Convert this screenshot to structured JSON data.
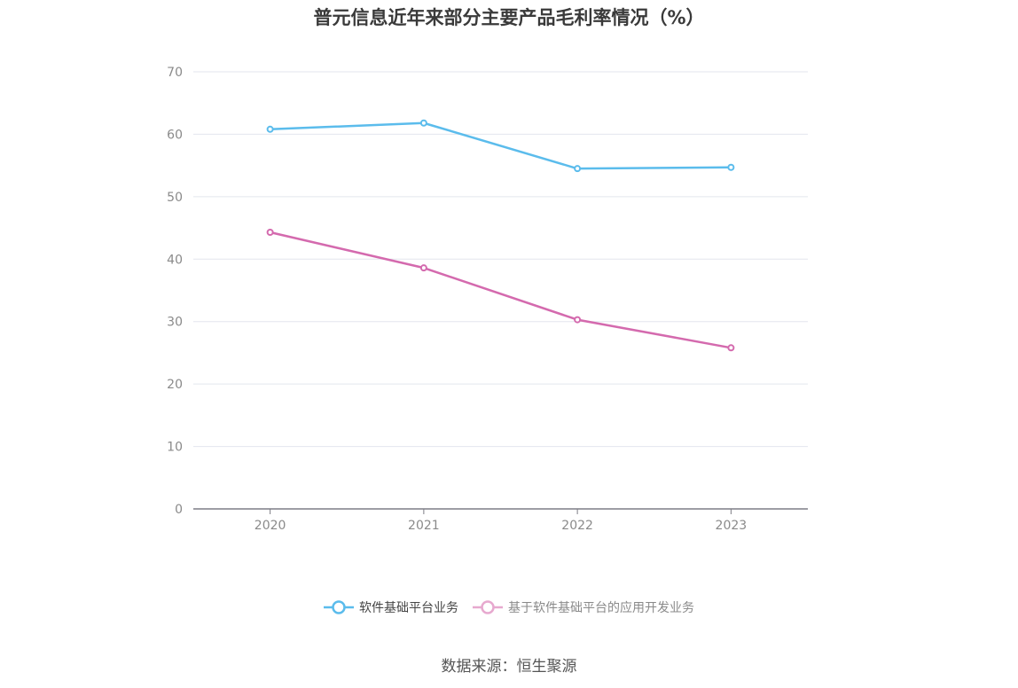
{
  "chart_data": {
    "type": "line",
    "title": "普元信息近年来部分主要产品毛利率情况（%）",
    "categories": [
      "2020",
      "2021",
      "2022",
      "2023"
    ],
    "series": [
      {
        "name": "软件基础平台业务",
        "color": "#5bbcec",
        "values": [
          60.8,
          61.8,
          54.5,
          54.7
        ]
      },
      {
        "name": "基于软件基础平台的应用开发业务",
        "color": "#d46aae",
        "legend_color": "#e7a9cf",
        "values": [
          44.3,
          38.6,
          30.3,
          25.8
        ]
      }
    ],
    "ylim": [
      0,
      70
    ],
    "yticks": [
      "0",
      "10",
      "20",
      "30",
      "40",
      "50",
      "60",
      "70"
    ],
    "grid": true,
    "legend_position": "bottom-center",
    "source": "数据来源：恒生聚源"
  }
}
